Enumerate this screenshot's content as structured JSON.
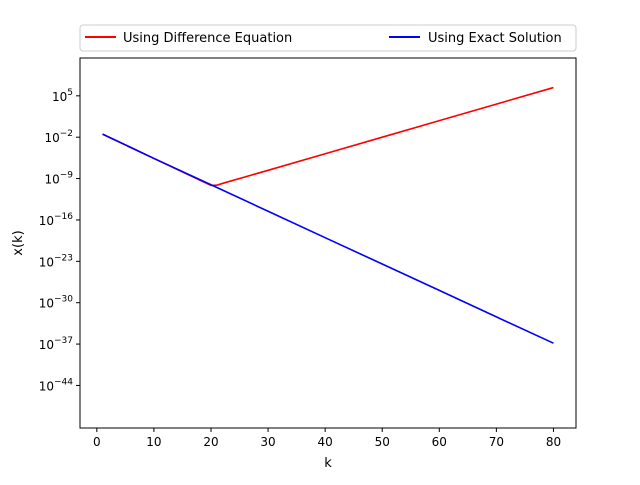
{
  "chart_data": {
    "type": "line",
    "xlabel": "k",
    "ylabel": "x(k)",
    "yscale": "log",
    "xlim": [
      -2.95,
      83.95
    ],
    "ylim_exp": [
      -51.2,
      11.4
    ],
    "grid": false,
    "legend_placement": "top, above axes, 2 columns",
    "x_ticks": [
      {
        "value": 0,
        "label": "0"
      },
      {
        "value": 10,
        "label": "10"
      },
      {
        "value": 20,
        "label": "20"
      },
      {
        "value": 30,
        "label": "30"
      },
      {
        "value": 40,
        "label": "40"
      },
      {
        "value": 50,
        "label": "50"
      },
      {
        "value": 60,
        "label": "60"
      },
      {
        "value": 70,
        "label": "70"
      },
      {
        "value": 80,
        "label": "80"
      }
    ],
    "y_ticks": [
      {
        "exp": 5,
        "base": "10",
        "sup": "5"
      },
      {
        "exp": -2,
        "base": "10",
        "sup": "−2"
      },
      {
        "exp": -9,
        "base": "10",
        "sup": "−9"
      },
      {
        "exp": -16,
        "base": "10",
        "sup": "−16"
      },
      {
        "exp": -23,
        "base": "10",
        "sup": "−23"
      },
      {
        "exp": -30,
        "base": "10",
        "sup": "−30"
      },
      {
        "exp": -37,
        "base": "10",
        "sup": "−37"
      },
      {
        "exp": -44,
        "base": "10",
        "sup": "−44"
      }
    ],
    "series": [
      {
        "name": "Using Difference Equation",
        "color": "#ff0000",
        "points": [
          [
            1,
            0.0333
          ],
          [
            10,
            2.56e-06
          ],
          [
            18,
            5.7e-10
          ],
          [
            20,
            7e-11
          ],
          [
            21,
            7.5e-11
          ],
          [
            22,
            1.5e-10
          ],
          [
            30,
            2.5e-08
          ],
          [
            40,
            1.6e-05
          ],
          [
            50,
            0.01
          ],
          [
            60,
            6.3
          ],
          [
            70,
            4000.0
          ],
          [
            80,
            2500000.0
          ]
        ]
      },
      {
        "name": "Using Exact Solution",
        "color": "#0000ff",
        "points": [
          [
            1,
            0.0333
          ],
          [
            10,
            2.56e-06
          ],
          [
            20,
            9e-11
          ],
          [
            30,
            3e-15
          ],
          [
            40,
            1e-19
          ],
          [
            50,
            3.5e-24
          ],
          [
            60,
            1.2e-28
          ],
          [
            70,
            4e-33
          ],
          [
            80,
            1.4e-37
          ]
        ]
      }
    ]
  }
}
